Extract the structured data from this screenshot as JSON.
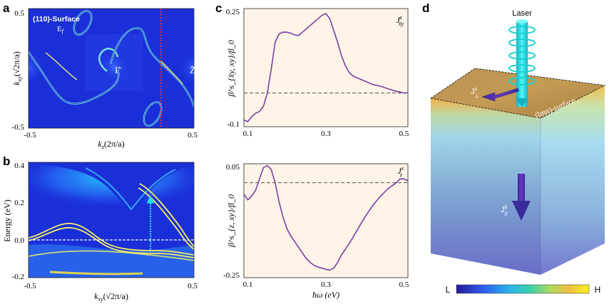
{
  "figure": {
    "panel_labels": [
      "a",
      "b",
      "c",
      "d"
    ]
  },
  "panel_a": {
    "surface_label": "(110)-Surface",
    "fermi_label": "E",
    "fermi_sub": "f",
    "gamma_label": "Γ̄",
    "z_label": "Z̄",
    "xticks": [
      "-0.5",
      "0.5"
    ],
    "yticks": [
      "0.5",
      "-0.5"
    ],
    "xlabel": "k",
    "xlabel_sub": "z",
    "xlabel_rest": "(2π/a)",
    "ylabel": "k",
    "ylabel_sub": "xy",
    "ylabel_rest": "(√2π/a)"
  },
  "panel_b": {
    "ylabel": "Energy (eV)",
    "yticks": [
      "0.4",
      "0.2",
      "0.0",
      "-0.2"
    ],
    "xticks": [
      "-0.5",
      "0.5"
    ],
    "xlabel": "k",
    "xlabel_sub": "xy",
    "xlabel_rest": "(√2π/a)"
  },
  "panel_d": {
    "laser_label": "Laser",
    "surface_label": "(lmn)-surface",
    "jperp_label": "J",
    "jperp_sup": "s",
    "jperp_sub": "⊥",
    "jbulk_label": "J",
    "jbulk_sup": "b",
    "jbulk_sub": "//",
    "colorbar_low": "L",
    "colorbar_high": "H"
  },
  "colors": {
    "background_plot": "#fdf3e6",
    "curve": "#7a3fa6",
    "band_map_bg": "#1a2fd8",
    "arrow_cyan": "#22e0e0",
    "arrow_purple": "#6a2fa0"
  },
  "chart_data": [
    {
      "id": "c-top",
      "type": "line",
      "title": "J",
      "title_sup": "s",
      "title_sub": "x̄y",
      "ylabel": "β^s_{x̄y, xy}/β_0",
      "xlabel": "",
      "xlim": [
        0.09,
        0.51
      ],
      "ylim": [
        -0.1,
        0.25
      ],
      "xticks": [
        "0.1",
        "0.3",
        "0.5"
      ],
      "yticks": [
        "0.25",
        "-0.1"
      ],
      "zero_line": 0.0,
      "x": [
        0.09,
        0.1,
        0.11,
        0.12,
        0.13,
        0.14,
        0.15,
        0.16,
        0.17,
        0.18,
        0.19,
        0.2,
        0.21,
        0.22,
        0.23,
        0.24,
        0.25,
        0.26,
        0.27,
        0.28,
        0.29,
        0.3,
        0.31,
        0.32,
        0.33,
        0.34,
        0.35,
        0.36,
        0.37,
        0.38,
        0.39,
        0.4,
        0.42,
        0.44,
        0.46,
        0.48,
        0.5,
        0.51
      ],
      "y": [
        -0.08,
        -0.085,
        -0.07,
        -0.06,
        -0.055,
        -0.04,
        0.0,
        0.07,
        0.15,
        0.175,
        0.18,
        0.18,
        0.177,
        0.172,
        0.17,
        0.18,
        0.19,
        0.2,
        0.21,
        0.22,
        0.23,
        0.235,
        0.22,
        0.185,
        0.15,
        0.11,
        0.08,
        0.06,
        0.05,
        0.045,
        0.04,
        0.035,
        0.025,
        0.02,
        0.012,
        0.005,
        0.0,
        0.0
      ]
    },
    {
      "id": "c-bottom",
      "type": "line",
      "title": "J",
      "title_sup": "s",
      "title_sub": "z",
      "ylabel": "β^s_{z, xy}/β_0",
      "xlabel": "ħω (eV)",
      "xlim": [
        0.09,
        0.51
      ],
      "ylim": [
        -0.25,
        0.05
      ],
      "xticks": [
        "0.1",
        "0.3",
        "0.5"
      ],
      "yticks": [
        "0.05",
        "-0.25"
      ],
      "zero_line": 0.0,
      "x": [
        0.09,
        0.1,
        0.11,
        0.12,
        0.13,
        0.14,
        0.15,
        0.16,
        0.17,
        0.18,
        0.19,
        0.2,
        0.21,
        0.22,
        0.23,
        0.24,
        0.25,
        0.26,
        0.27,
        0.28,
        0.29,
        0.3,
        0.31,
        0.32,
        0.33,
        0.34,
        0.36,
        0.38,
        0.4,
        0.42,
        0.44,
        0.46,
        0.48,
        0.49,
        0.5,
        0.51
      ],
      "y": [
        -0.03,
        -0.045,
        -0.035,
        -0.02,
        0.01,
        0.04,
        0.045,
        0.035,
        0.0,
        -0.05,
        -0.09,
        -0.12,
        -0.14,
        -0.155,
        -0.17,
        -0.185,
        -0.2,
        -0.21,
        -0.218,
        -0.222,
        -0.225,
        -0.228,
        -0.23,
        -0.225,
        -0.21,
        -0.19,
        -0.16,
        -0.125,
        -0.09,
        -0.06,
        -0.035,
        -0.015,
        0.0,
        0.01,
        0.01,
        0.005
      ]
    }
  ]
}
